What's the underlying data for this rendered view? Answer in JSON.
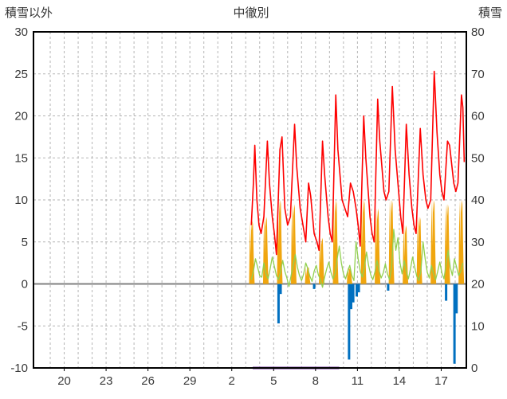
{
  "chart_data": {
    "type": "line",
    "title": "中徹別",
    "left_axis": {
      "label": "積雪以外",
      "min": -10,
      "max": 30,
      "ticks": [
        30,
        25,
        20,
        15,
        10,
        5,
        0,
        -5,
        -10
      ]
    },
    "right_axis": {
      "label": "積雪",
      "min": 0,
      "max": 80,
      "ticks": [
        80,
        70,
        60,
        50,
        40,
        30,
        20,
        10,
        0
      ]
    },
    "x_axis": {
      "tick_labels": [
        "20",
        "23",
        "26",
        "29",
        "2",
        "5",
        "8",
        "11",
        "14",
        "17"
      ],
      "tick_positions": [
        1,
        4,
        7,
        10,
        13,
        16,
        19,
        22,
        25,
        28
      ],
      "xlim": [
        -1.2,
        29.8
      ],
      "day_grid_step": 1
    },
    "grid": {
      "color": "#b5b5b5",
      "dash": "3,3",
      "zero_line_color": "#808080"
    },
    "series": [
      {
        "name": "purple-line",
        "color": "#7030a0",
        "type": "line",
        "axis": "right",
        "width": 3,
        "points": [
          [
            14.5,
            0
          ],
          [
            20.7,
            0
          ]
        ]
      },
      {
        "name": "orange-bars",
        "color": "#f0a60f",
        "type": "area-days",
        "axis": "left",
        "day_positions": [
          14,
          15,
          16,
          17,
          18,
          19,
          20,
          21,
          22,
          23,
          24,
          25,
          26,
          27,
          28,
          29
        ],
        "heights": [
          7.5,
          8,
          10,
          9.5,
          2,
          5.5,
          10,
          2,
          10,
          9,
          10,
          7,
          8,
          10,
          9.5,
          10
        ],
        "max_value": 10
      },
      {
        "name": "blue-bars",
        "color": "#0070c0",
        "type": "bars",
        "axis": "left",
        "bars": [
          [
            16.35,
            -4.7
          ],
          [
            16.5,
            -1.2
          ],
          [
            18.9,
            -0.6
          ],
          [
            21.4,
            -9
          ],
          [
            21.55,
            -3
          ],
          [
            21.7,
            -2.2
          ],
          [
            21.95,
            -1.5
          ],
          [
            22.1,
            -1
          ],
          [
            24.2,
            -0.8
          ],
          [
            28.35,
            -2
          ],
          [
            28.95,
            -9.5
          ],
          [
            29.1,
            -3.5
          ]
        ]
      },
      {
        "name": "green-line",
        "color": "#92d050",
        "type": "line-sampled",
        "axis": "left",
        "width": 1.3,
        "x0": 14.4,
        "dx": 0.15,
        "values": [
          0.5,
          1.5,
          3,
          2,
          1,
          0.8,
          2.5,
          1.2,
          0.6,
          1.8,
          3.2,
          2.1,
          1,
          0.5,
          1.5,
          2.8,
          1.5,
          0.7,
          -0.3,
          1,
          2.2,
          3.5,
          2,
          1,
          0.4,
          1.2,
          2.5,
          1.8,
          0.9,
          0.3,
          1.5,
          2.2,
          1.1,
          0.5,
          -0.4,
          0.8,
          1.8,
          2.6,
          1.4,
          0.6,
          1.2,
          3,
          4.5,
          2.5,
          1.2,
          0.6,
          1.5,
          2.2,
          1,
          0.4,
          5,
          3,
          1.5,
          0.8,
          2,
          3.8,
          2.2,
          1.1,
          0.5,
          1.4,
          2.8,
          1.6,
          0.7,
          1.3,
          2.4,
          1.2,
          0.5,
          2,
          6.5,
          4,
          5.5,
          2.5,
          1.2,
          2.8,
          1.5,
          0.6,
          1.8,
          3.2,
          2,
          0.9,
          0.4,
          1.6,
          5,
          3,
          1.4,
          0.7,
          2.2,
          1.2,
          0.5,
          1.5,
          2.6,
          1.3,
          0.6,
          2.4,
          4,
          2,
          1,
          3,
          2,
          1,
          1.5,
          2.5
        ]
      },
      {
        "name": "red-line",
        "color": "#fe0000",
        "type": "line",
        "axis": "left",
        "width": 1.6,
        "points": [
          [
            14.4,
            7
          ],
          [
            14.55,
            12
          ],
          [
            14.65,
            16.5
          ],
          [
            14.8,
            10
          ],
          [
            14.95,
            7
          ],
          [
            15.1,
            6
          ],
          [
            15.3,
            8
          ],
          [
            15.55,
            17
          ],
          [
            15.7,
            12
          ],
          [
            15.9,
            8
          ],
          [
            16.05,
            6
          ],
          [
            16.2,
            3.5
          ],
          [
            16.45,
            16
          ],
          [
            16.6,
            17.5
          ],
          [
            16.8,
            9
          ],
          [
            17.0,
            7
          ],
          [
            17.2,
            8
          ],
          [
            17.5,
            19
          ],
          [
            17.65,
            14
          ],
          [
            17.9,
            9
          ],
          [
            18.1,
            7
          ],
          [
            18.3,
            5
          ],
          [
            18.5,
            12
          ],
          [
            18.65,
            10.5
          ],
          [
            18.9,
            6
          ],
          [
            19.1,
            5
          ],
          [
            19.25,
            4
          ],
          [
            19.5,
            17
          ],
          [
            19.65,
            13
          ],
          [
            19.9,
            8
          ],
          [
            20.05,
            6
          ],
          [
            20.2,
            5
          ],
          [
            20.45,
            22.5
          ],
          [
            20.6,
            16
          ],
          [
            20.9,
            10
          ],
          [
            21.1,
            9
          ],
          [
            21.3,
            8
          ],
          [
            21.5,
            12
          ],
          [
            21.7,
            11
          ],
          [
            21.9,
            9
          ],
          [
            22.05,
            7
          ],
          [
            22.2,
            4.5
          ],
          [
            22.45,
            20
          ],
          [
            22.6,
            15
          ],
          [
            22.9,
            8
          ],
          [
            23.05,
            6
          ],
          [
            23.2,
            5
          ],
          [
            23.45,
            22
          ],
          [
            23.6,
            17
          ],
          [
            23.9,
            11
          ],
          [
            24.05,
            10
          ],
          [
            24.25,
            11
          ],
          [
            24.5,
            23.5
          ],
          [
            24.7,
            16
          ],
          [
            24.9,
            12
          ],
          [
            25.1,
            8
          ],
          [
            25.25,
            6
          ],
          [
            25.5,
            19
          ],
          [
            25.7,
            13
          ],
          [
            25.9,
            9
          ],
          [
            26.05,
            7
          ],
          [
            26.2,
            6
          ],
          [
            26.5,
            18.5
          ],
          [
            26.7,
            13
          ],
          [
            26.9,
            10
          ],
          [
            27.05,
            9
          ],
          [
            27.25,
            10
          ],
          [
            27.5,
            25.3
          ],
          [
            27.7,
            18
          ],
          [
            27.9,
            13
          ],
          [
            28.05,
            11
          ],
          [
            28.2,
            10
          ],
          [
            28.45,
            17
          ],
          [
            28.6,
            16.5
          ],
          [
            28.9,
            12
          ],
          [
            29.05,
            11
          ],
          [
            29.2,
            12
          ],
          [
            29.45,
            22.5
          ],
          [
            29.55,
            21
          ],
          [
            29.65,
            14.5
          ]
        ]
      }
    ]
  }
}
